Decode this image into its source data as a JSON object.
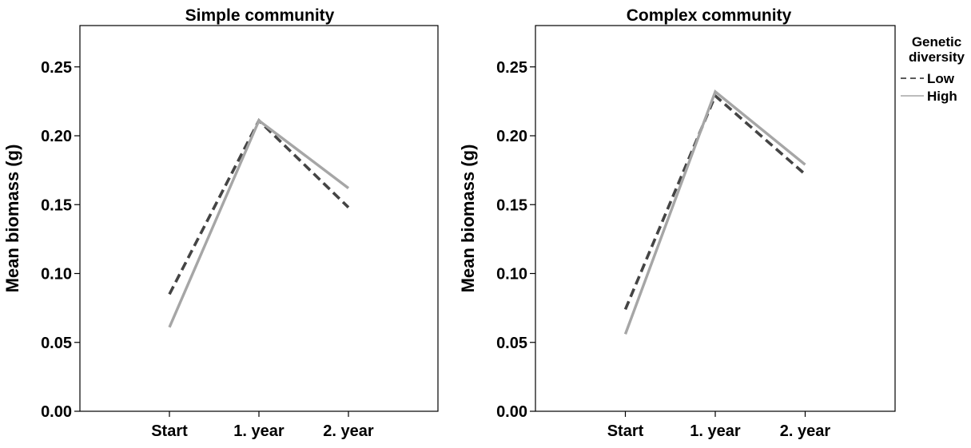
{
  "colors": {
    "low": "#444444",
    "high": "#a6a6a6",
    "axis": "#000000"
  },
  "legend": {
    "title_lines": [
      "Genetic",
      "diversity"
    ],
    "entries": [
      {
        "label": "Low",
        "style": "dashed",
        "color_key": "low"
      },
      {
        "label": "High",
        "style": "solid",
        "color_key": "high"
      }
    ]
  },
  "chart_data": [
    {
      "type": "line",
      "title": "Simple community",
      "xlabel": "",
      "ylabel": "Mean biomass (g)",
      "categories": [
        "Start",
        "1. year",
        "2. year"
      ],
      "ylim": [
        0,
        0.28
      ],
      "yticks": [
        "0.00",
        "0.05",
        "0.10",
        "0.15",
        "0.20",
        "0.25"
      ],
      "series": [
        {
          "name": "Low",
          "values": [
            0.085,
            0.211,
            0.148
          ]
        },
        {
          "name": "High",
          "values": [
            0.061,
            0.211,
            0.162
          ]
        }
      ]
    },
    {
      "type": "line",
      "title": "Complex community",
      "xlabel": "",
      "ylabel": "Mean biomass (g)",
      "categories": [
        "Start",
        "1. year",
        "2. year"
      ],
      "ylim": [
        0,
        0.28
      ],
      "yticks": [
        "0.00",
        "0.05",
        "0.10",
        "0.15",
        "0.20",
        "0.25"
      ],
      "series": [
        {
          "name": "Low",
          "values": [
            0.074,
            0.229,
            0.172
          ]
        },
        {
          "name": "High",
          "values": [
            0.056,
            0.232,
            0.179
          ]
        }
      ]
    }
  ]
}
